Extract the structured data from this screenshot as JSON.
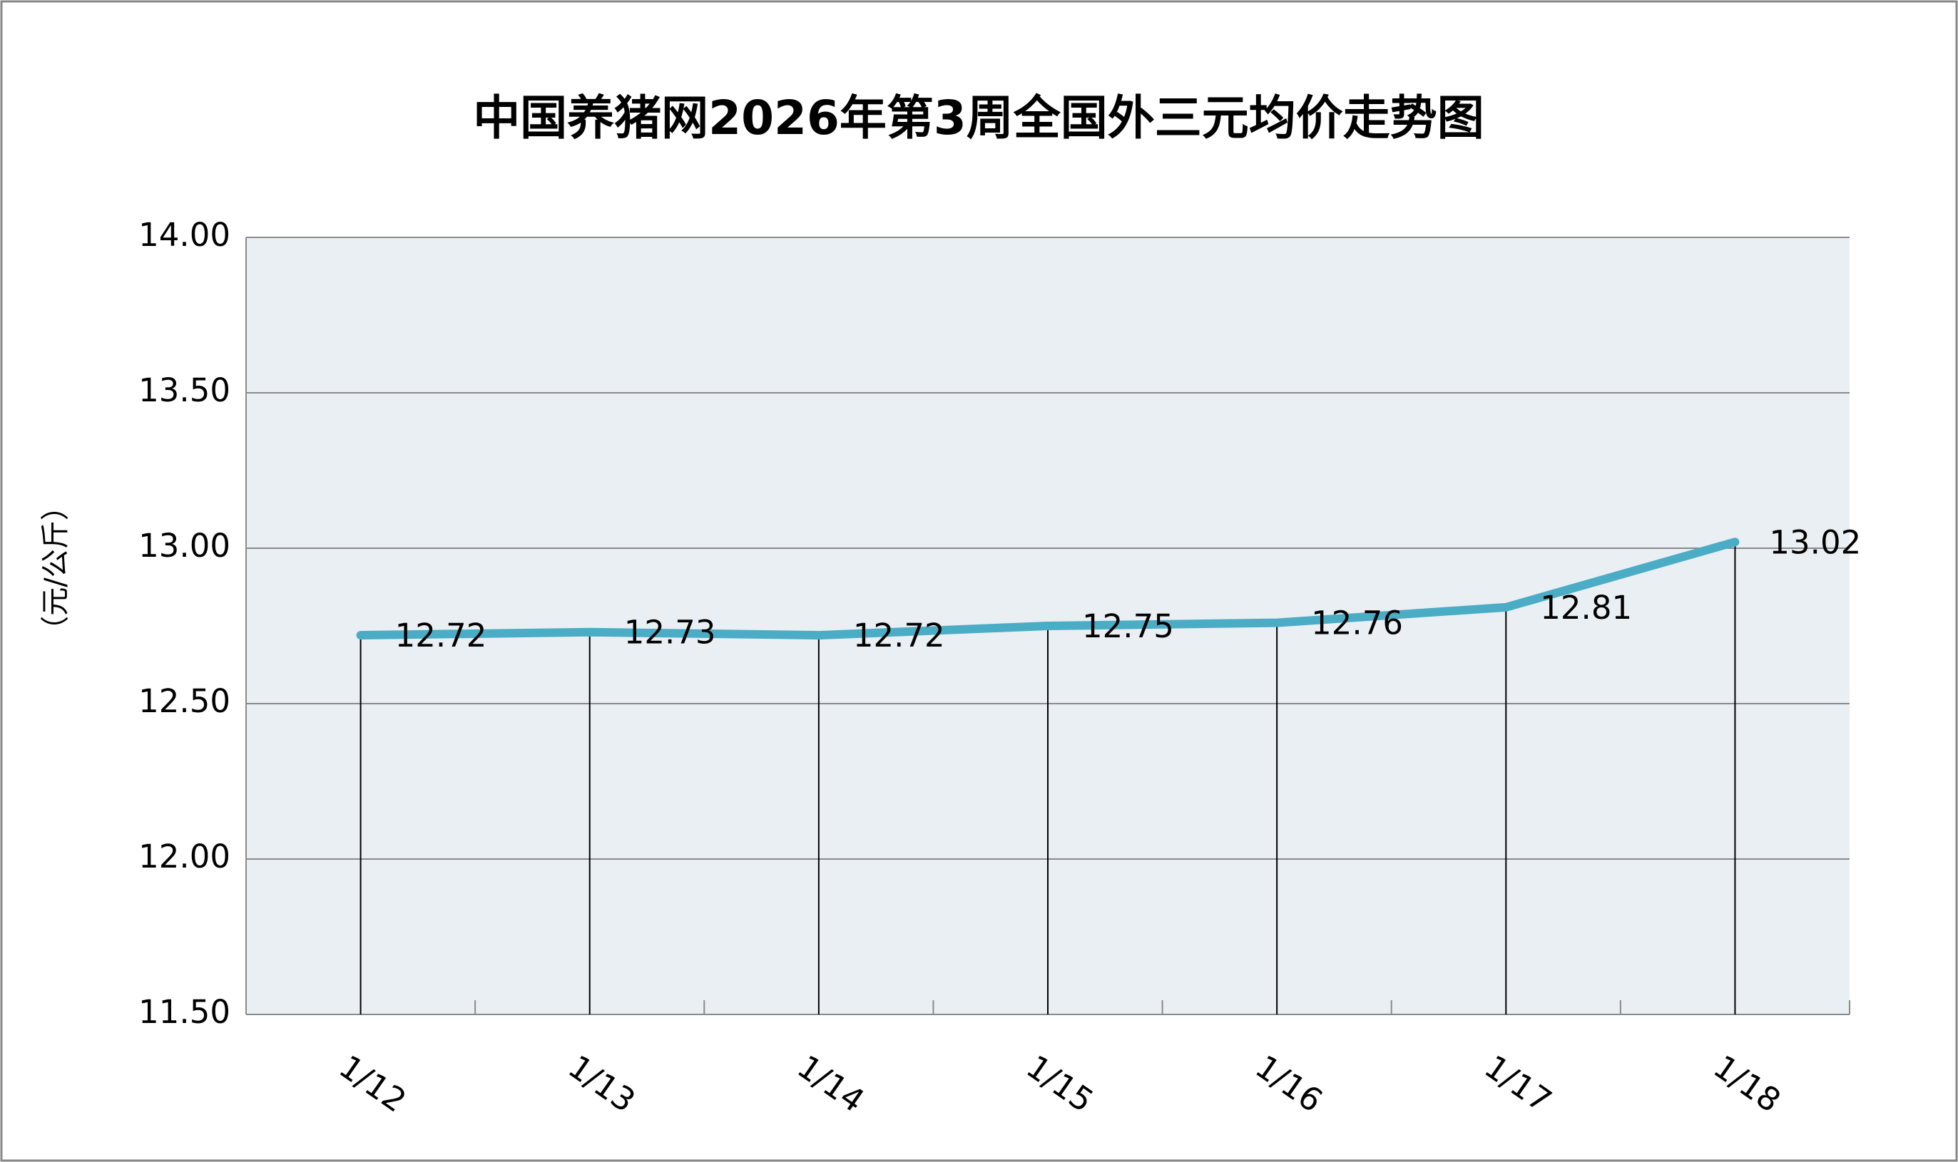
{
  "chart_data": {
    "type": "line",
    "title": "中国养猪网2026年第3周全国外三元均价走势图",
    "y_label": "（元/公斤）",
    "categories": [
      "1/12",
      "1/13",
      "1/14",
      "1/15",
      "1/16",
      "1/17",
      "1/18"
    ],
    "values": [
      12.72,
      12.73,
      12.72,
      12.75,
      12.76,
      12.81,
      13.02
    ],
    "color": "#4bacc6",
    "ylim": [
      11.5,
      14.0
    ],
    "yticks": [
      {
        "value": 11.5,
        "label": "11.50"
      },
      {
        "value": 12,
        "label": "12.00"
      },
      {
        "value": 12.5,
        "label": "12.50"
      },
      {
        "value": 13,
        "label": "13.00"
      },
      {
        "value": 13.5,
        "label": "13.50"
      },
      {
        "value": 14,
        "label": "14.00"
      }
    ],
    "grid": true
  }
}
